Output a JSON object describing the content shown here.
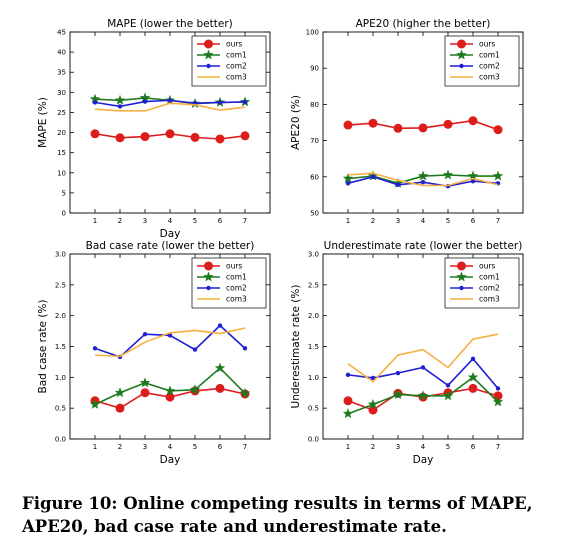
{
  "caption": {
    "label": "Figure 10:",
    "text": "Online competing results in terms of MAPE, APE20, bad case rate and underestimate rate."
  },
  "chart_data": [
    {
      "type": "line",
      "title": "MAPE (lower the better)",
      "xlabel": "Day",
      "ylabel": "MAPE (%)",
      "x": [
        1,
        2,
        3,
        4,
        5,
        6,
        7
      ],
      "xlim": [
        0,
        8
      ],
      "ylim": [
        0,
        45
      ],
      "yticks": [
        "0",
        "5",
        "10",
        "15",
        "20",
        "25",
        "30",
        "35",
        "40",
        "45"
      ],
      "xticks": [
        "1",
        "2",
        "3",
        "4",
        "5",
        "6",
        "7"
      ],
      "legend": "top-right",
      "grid": false,
      "series": [
        {
          "name": "ours",
          "color": "#dd1c1c",
          "marker": "circle",
          "values": [
            19.7,
            18.7,
            19.0,
            19.7,
            18.8,
            18.4,
            19.2
          ]
        },
        {
          "name": "com1",
          "color": "#1f7a1f",
          "marker": "star",
          "values": [
            28.3,
            28.0,
            28.6,
            28.0,
            27.2,
            27.5,
            27.6
          ]
        },
        {
          "name": "com2",
          "color": "#1f1fd6",
          "marker": "dot",
          "values": [
            27.5,
            26.5,
            27.7,
            28.0,
            27.3,
            27.5,
            27.6
          ]
        },
        {
          "name": "com3",
          "color": "#f5b041",
          "marker": "none",
          "values": [
            25.8,
            25.4,
            25.4,
            27.3,
            26.9,
            25.6,
            26.3
          ]
        }
      ]
    },
    {
      "type": "line",
      "title": "APE20 (higher the better)",
      "xlabel": "",
      "ylabel": "APE20 (%)",
      "x": [
        1,
        2,
        3,
        4,
        5,
        6,
        7
      ],
      "xlim": [
        0,
        8
      ],
      "ylim": [
        50,
        100
      ],
      "yticks": [
        "50",
        "60",
        "70",
        "80",
        "90",
        "100"
      ],
      "xticks": [
        "1",
        "2",
        "3",
        "4",
        "5",
        "6",
        "7"
      ],
      "legend": "top-right",
      "grid": false,
      "series": [
        {
          "name": "ours",
          "color": "#dd1c1c",
          "marker": "circle",
          "values": [
            74.3,
            74.8,
            73.4,
            73.5,
            74.5,
            75.5,
            73.0
          ]
        },
        {
          "name": "com1",
          "color": "#1f7a1f",
          "marker": "star",
          "values": [
            59.5,
            60.2,
            58.2,
            60.2,
            60.5,
            60.2,
            60.2
          ]
        },
        {
          "name": "com2",
          "color": "#1f1fd6",
          "marker": "dot",
          "values": [
            58.2,
            60.0,
            57.8,
            58.5,
            57.4,
            58.8,
            58.2
          ]
        },
        {
          "name": "com3",
          "color": "#f5b041",
          "marker": "none",
          "values": [
            60.5,
            61.0,
            59.0,
            57.6,
            57.6,
            59.5,
            57.8
          ]
        }
      ]
    },
    {
      "type": "line",
      "title": "Bad case rate (lower the better)",
      "xlabel": "Day",
      "ylabel": "Bad case rate (%)",
      "x": [
        1,
        2,
        3,
        4,
        5,
        6,
        7
      ],
      "xlim": [
        0,
        8
      ],
      "ylim": [
        0,
        3
      ],
      "yticks": [
        "0.0",
        "0.5",
        "1.0",
        "1.5",
        "2.0",
        "2.5",
        "3.0"
      ],
      "xticks": [
        "1",
        "2",
        "3",
        "4",
        "5",
        "6",
        "7"
      ],
      "legend": "top-right",
      "grid": false,
      "series": [
        {
          "name": "ours",
          "color": "#dd1c1c",
          "marker": "circle",
          "values": [
            0.62,
            0.5,
            0.75,
            0.68,
            0.78,
            0.82,
            0.73
          ]
        },
        {
          "name": "com1",
          "color": "#1f7a1f",
          "marker": "star",
          "values": [
            0.56,
            0.75,
            0.91,
            0.78,
            0.8,
            1.15,
            0.74
          ]
        },
        {
          "name": "com2",
          "color": "#1f1fd6",
          "marker": "dot",
          "values": [
            1.47,
            1.33,
            1.7,
            1.68,
            1.45,
            1.84,
            1.47
          ]
        },
        {
          "name": "com3",
          "color": "#f5b041",
          "marker": "none",
          "values": [
            1.36,
            1.34,
            1.57,
            1.72,
            1.76,
            1.71,
            1.8
          ]
        }
      ]
    },
    {
      "type": "line",
      "title": "Underestimate rate (lower the better)",
      "xlabel": "Day",
      "ylabel": "Underestimate rate (%)",
      "x": [
        1,
        2,
        3,
        4,
        5,
        6,
        7
      ],
      "xlim": [
        0,
        8
      ],
      "ylim": [
        0,
        3
      ],
      "yticks": [
        "0.0",
        "0.5",
        "1.0",
        "1.5",
        "2.0",
        "2.5",
        "3.0"
      ],
      "xticks": [
        "1",
        "2",
        "3",
        "4",
        "5",
        "6",
        "7"
      ],
      "legend": "top-right",
      "grid": false,
      "series": [
        {
          "name": "ours",
          "color": "#dd1c1c",
          "marker": "circle",
          "values": [
            0.62,
            0.47,
            0.74,
            0.68,
            0.75,
            0.82,
            0.7
          ]
        },
        {
          "name": "com1",
          "color": "#1f7a1f",
          "marker": "star",
          "values": [
            0.41,
            0.56,
            0.72,
            0.7,
            0.7,
            1.0,
            0.6
          ]
        },
        {
          "name": "com2",
          "color": "#1f1fd6",
          "marker": "dot",
          "values": [
            1.04,
            0.99,
            1.07,
            1.16,
            0.87,
            1.3,
            0.82
          ]
        },
        {
          "name": "com3",
          "color": "#f5b041",
          "marker": "none",
          "values": [
            1.22,
            0.93,
            1.36,
            1.45,
            1.16,
            1.62,
            1.7
          ]
        }
      ]
    }
  ]
}
